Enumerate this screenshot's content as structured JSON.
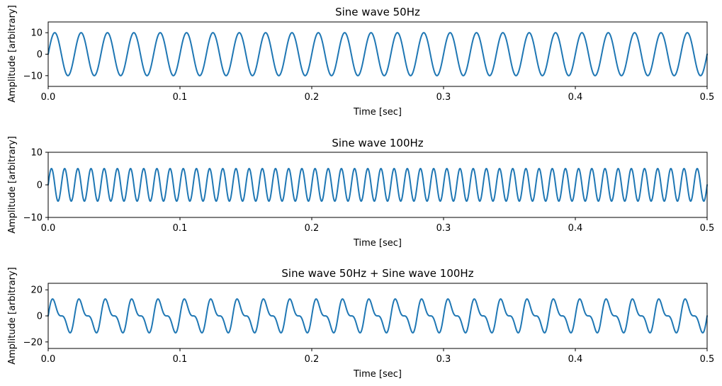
{
  "chart_data": [
    {
      "type": "line",
      "title": "Sine wave 50Hz",
      "xlabel": "Time [sec]",
      "ylabel": "Amplitude [arbitrary]",
      "xlim": [
        0.0,
        0.5
      ],
      "ylim": [
        -15,
        15
      ],
      "xticks": [
        "0.0",
        "0.1",
        "0.2",
        "0.3",
        "0.4",
        "0.5"
      ],
      "yticks": [
        "10",
        "0",
        "−10"
      ],
      "series": [
        {
          "name": "50Hz",
          "components": [
            {
              "amplitude": 10,
              "frequency_hz": 50
            }
          ]
        }
      ]
    },
    {
      "type": "line",
      "title": "Sine wave 100Hz",
      "xlabel": "Time [sec]",
      "ylabel": "Amplitude [arbitrary]",
      "xlim": [
        0.0,
        0.5
      ],
      "ylim": [
        -10,
        10
      ],
      "xticks": [
        "0.0",
        "0.1",
        "0.2",
        "0.3",
        "0.4",
        "0.5"
      ],
      "yticks": [
        "10",
        "0",
        "−10"
      ],
      "series": [
        {
          "name": "100Hz",
          "components": [
            {
              "amplitude": 5,
              "frequency_hz": 100
            }
          ]
        }
      ]
    },
    {
      "type": "line",
      "title": "Sine wave 50Hz + Sine wave 100Hz",
      "xlabel": "Time [sec]",
      "ylabel": "Amplitude [arbitrary]",
      "xlim": [
        0.0,
        0.5
      ],
      "ylim": [
        -25,
        25
      ],
      "xticks": [
        "0.0",
        "0.1",
        "0.2",
        "0.3",
        "0.4",
        "0.5"
      ],
      "yticks": [
        "20",
        "0",
        "−20"
      ],
      "series": [
        {
          "name": "50Hz + 100Hz",
          "components": [
            {
              "amplitude": 10,
              "frequency_hz": 50
            },
            {
              "amplitude": 5,
              "frequency_hz": 100
            }
          ]
        }
      ]
    }
  ],
  "colors": {
    "line": "#1f77b4",
    "axes": "#000000"
  }
}
